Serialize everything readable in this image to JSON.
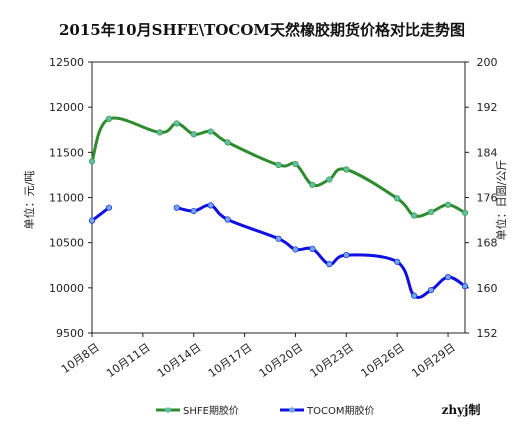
{
  "chart_data": {
    "type": "line",
    "title": "2015年10月SHFE\\TOCOM天然橡胶期货价格对比走势图",
    "ylabel_left": "单位：元/吨",
    "ylabel_right": "单位：日圆/公斤",
    "ylim_left": [
      9500,
      12500
    ],
    "yticks_left": [
      "9500",
      "10000",
      "10500",
      "11000",
      "11500",
      "12000",
      "12500"
    ],
    "ylim_right": [
      152,
      200
    ],
    "yticks_right": [
      "152",
      "160",
      "168",
      "176",
      "184",
      "192",
      "200"
    ],
    "xlim": [
      8,
      30
    ],
    "xticks": [
      {
        "day": 8,
        "label": "10月8日"
      },
      {
        "day": 11,
        "label": "10月11日"
      },
      {
        "day": 14,
        "label": "10月14日"
      },
      {
        "day": 17,
        "label": "10月17日"
      },
      {
        "day": 20,
        "label": "10月20日"
      },
      {
        "day": 23,
        "label": "10月23日"
      },
      {
        "day": 26,
        "label": "10月26日"
      },
      {
        "day": 29,
        "label": "10月29日"
      }
    ],
    "grid": false,
    "legend_position": "bottom",
    "series": [
      {
        "name": "SHFE期胶价",
        "axis": "left",
        "color": "#2e8b2e",
        "marker_color": "#5fc0a8",
        "points": [
          {
            "day": 8,
            "value": 11400
          },
          {
            "day": 9,
            "value": 11870
          },
          {
            "day": 12,
            "value": 11720
          },
          {
            "day": 13,
            "value": 11820
          },
          {
            "day": 14,
            "value": 11700
          },
          {
            "day": 15,
            "value": 11730
          },
          {
            "day": 16,
            "value": 11610
          },
          {
            "day": 19,
            "value": 11360
          },
          {
            "day": 20,
            "value": 11370
          },
          {
            "day": 21,
            "value": 11140
          },
          {
            "day": 22,
            "value": 11200
          },
          {
            "day": 23,
            "value": 11310
          },
          {
            "day": 26,
            "value": 10990
          },
          {
            "day": 27,
            "value": 10800
          },
          {
            "day": 28,
            "value": 10840
          },
          {
            "day": 29,
            "value": 10920
          },
          {
            "day": 30,
            "value": 10830
          }
        ]
      },
      {
        "name": "TOCOM期胶价",
        "axis": "right",
        "color": "#1010e0",
        "marker_color": "#6aa8e8",
        "segments": [
          [
            {
              "day": 8,
              "value": 171.9
            },
            {
              "day": 9,
              "value": 174.2
            }
          ],
          [
            {
              "day": 13,
              "value": 174.2
            },
            {
              "day": 14,
              "value": 173.6
            },
            {
              "day": 15,
              "value": 174.6
            },
            {
              "day": 16,
              "value": 172.1
            },
            {
              "day": 19,
              "value": 168.7
            },
            {
              "day": 20,
              "value": 166.8
            },
            {
              "day": 21,
              "value": 166.9
            },
            {
              "day": 22,
              "value": 164.2
            },
            {
              "day": 23,
              "value": 165.8
            },
            {
              "day": 26,
              "value": 164.6
            },
            {
              "day": 27,
              "value": 158.6
            },
            {
              "day": 28,
              "value": 159.6
            },
            {
              "day": 29,
              "value": 161.9
            },
            {
              "day": 30,
              "value": 160.3
            }
          ]
        ]
      }
    ],
    "credit": "zhyj制"
  }
}
